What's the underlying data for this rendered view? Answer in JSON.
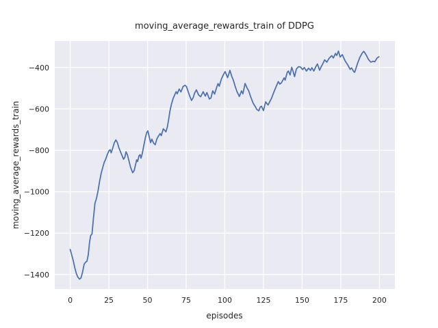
{
  "chart_data": {
    "type": "line",
    "title": "moving_average_rewards_train of DDPG",
    "xlabel": "episodes",
    "ylabel": "moving_average_rewards_train",
    "xlim": [
      -10,
      210
    ],
    "ylim": [
      -1470,
      -272
    ],
    "x_ticks": [
      0,
      25,
      50,
      75,
      100,
      125,
      150,
      175,
      200
    ],
    "y_ticks": [
      -400,
      -600,
      -800,
      -1000,
      -1200,
      -1400
    ],
    "grid": true,
    "legend_position": "none",
    "style": {
      "fig_bg": "#ffffff",
      "plot_bg": "#eaeaf2",
      "grid_color": "#ffffff",
      "line_color": "#4c72b0",
      "text_color": "#262626"
    },
    "series": [
      {
        "name": "moving_average_rewards_train",
        "points": [
          [
            0,
            -1279
          ],
          [
            1,
            -1306
          ],
          [
            2,
            -1334
          ],
          [
            3,
            -1368
          ],
          [
            4,
            -1396
          ],
          [
            5,
            -1413
          ],
          [
            6,
            -1422
          ],
          [
            7,
            -1416
          ],
          [
            8,
            -1388
          ],
          [
            9,
            -1350
          ],
          [
            10,
            -1340
          ],
          [
            10.8,
            -1336
          ],
          [
            11.6,
            -1308
          ],
          [
            12.5,
            -1245
          ],
          [
            13.2,
            -1212
          ],
          [
            14.1,
            -1204
          ],
          [
            15,
            -1130
          ],
          [
            16,
            -1056
          ],
          [
            17,
            -1032
          ],
          [
            18,
            -996
          ],
          [
            19,
            -950
          ],
          [
            20,
            -912
          ],
          [
            21,
            -884
          ],
          [
            22,
            -858
          ],
          [
            23,
            -842
          ],
          [
            24,
            -820
          ],
          [
            25,
            -803
          ],
          [
            25.8,
            -797
          ],
          [
            26.5,
            -812
          ],
          [
            27.5,
            -789
          ],
          [
            28.5,
            -764
          ],
          [
            29.5,
            -750
          ],
          [
            30.5,
            -762
          ],
          [
            31.5,
            -788
          ],
          [
            33,
            -816
          ],
          [
            34.5,
            -843
          ],
          [
            35.3,
            -834
          ],
          [
            36.1,
            -807
          ],
          [
            37,
            -822
          ],
          [
            38,
            -851
          ],
          [
            39,
            -881
          ],
          [
            40.4,
            -908
          ],
          [
            41.4,
            -897
          ],
          [
            42.3,
            -868
          ],
          [
            43,
            -846
          ],
          [
            43.6,
            -854
          ],
          [
            44.5,
            -826
          ],
          [
            45.2,
            -821
          ],
          [
            45.8,
            -838
          ],
          [
            46.6,
            -816
          ],
          [
            47.6,
            -777
          ],
          [
            48.6,
            -739
          ],
          [
            49.5,
            -714
          ],
          [
            50.2,
            -706
          ],
          [
            51,
            -731
          ],
          [
            52,
            -763
          ],
          [
            52.8,
            -746
          ],
          [
            54,
            -766
          ],
          [
            55,
            -773
          ],
          [
            56,
            -746
          ],
          [
            57,
            -732
          ],
          [
            58.2,
            -719
          ],
          [
            58.9,
            -729
          ],
          [
            60.2,
            -696
          ],
          [
            61.1,
            -703
          ],
          [
            61.9,
            -711
          ],
          [
            62.8,
            -688
          ],
          [
            63.6,
            -654
          ],
          [
            64.5,
            -610
          ],
          [
            65.5,
            -577
          ],
          [
            66.6,
            -549
          ],
          [
            67.7,
            -530
          ],
          [
            68.5,
            -517
          ],
          [
            69.2,
            -527
          ],
          [
            70.5,
            -504
          ],
          [
            71.6,
            -518
          ],
          [
            73,
            -492
          ],
          [
            74.2,
            -486
          ],
          [
            75.2,
            -492
          ],
          [
            76.3,
            -517
          ],
          [
            77.3,
            -538
          ],
          [
            78.5,
            -559
          ],
          [
            79.5,
            -546
          ],
          [
            80.5,
            -523
          ],
          [
            81.6,
            -508
          ],
          [
            83,
            -532
          ],
          [
            84.4,
            -541
          ],
          [
            86,
            -517
          ],
          [
            87.4,
            -538
          ],
          [
            88.4,
            -521
          ],
          [
            90,
            -552
          ],
          [
            91,
            -547
          ],
          [
            92.2,
            -513
          ],
          [
            93.4,
            -528
          ],
          [
            94.8,
            -494
          ],
          [
            95.6,
            -478
          ],
          [
            96.4,
            -490
          ],
          [
            97.8,
            -455
          ],
          [
            99,
            -436
          ],
          [
            100.2,
            -420
          ],
          [
            101.8,
            -449
          ],
          [
            103.3,
            -414
          ],
          [
            104.5,
            -443
          ],
          [
            105.5,
            -461
          ],
          [
            106.6,
            -489
          ],
          [
            107.8,
            -515
          ],
          [
            109.4,
            -540
          ],
          [
            110.8,
            -513
          ],
          [
            111.7,
            -527
          ],
          [
            113.1,
            -477
          ],
          [
            114.4,
            -499
          ],
          [
            115.4,
            -512
          ],
          [
            116.8,
            -543
          ],
          [
            118.3,
            -572
          ],
          [
            119.8,
            -590
          ],
          [
            120.6,
            -602
          ],
          [
            122,
            -609
          ],
          [
            122.9,
            -591
          ],
          [
            123.7,
            -587
          ],
          [
            125,
            -608
          ],
          [
            126.4,
            -566
          ],
          [
            127.2,
            -574
          ],
          [
            128,
            -581
          ],
          [
            129.2,
            -563
          ],
          [
            130.2,
            -549
          ],
          [
            131.6,
            -521
          ],
          [
            133.1,
            -494
          ],
          [
            134.6,
            -468
          ],
          [
            135.6,
            -480
          ],
          [
            136.6,
            -474
          ],
          [
            137.8,
            -458
          ],
          [
            138.4,
            -450
          ],
          [
            139,
            -461
          ],
          [
            140.4,
            -423
          ],
          [
            141.1,
            -417
          ],
          [
            142.2,
            -436
          ],
          [
            143.3,
            -399
          ],
          [
            144.2,
            -420
          ],
          [
            145.1,
            -444
          ],
          [
            146.3,
            -407
          ],
          [
            147.7,
            -396
          ],
          [
            149,
            -398
          ],
          [
            150.3,
            -410
          ],
          [
            151.4,
            -400
          ],
          [
            152.8,
            -417
          ],
          [
            154.2,
            -403
          ],
          [
            155.4,
            -414
          ],
          [
            156.3,
            -401
          ],
          [
            157.6,
            -417
          ],
          [
            158.8,
            -397
          ],
          [
            159.9,
            -383
          ],
          [
            161.3,
            -413
          ],
          [
            162.4,
            -395
          ],
          [
            163.3,
            -383
          ],
          [
            164.6,
            -363
          ],
          [
            166,
            -374
          ],
          [
            167.3,
            -357
          ],
          [
            168.3,
            -349
          ],
          [
            169.2,
            -343
          ],
          [
            170.2,
            -354
          ],
          [
            171.6,
            -332
          ],
          [
            172.4,
            -342
          ],
          [
            173.5,
            -321
          ],
          [
            174.6,
            -349
          ],
          [
            176,
            -338
          ],
          [
            177.8,
            -368
          ],
          [
            179.3,
            -385
          ],
          [
            181.1,
            -409
          ],
          [
            182,
            -402
          ],
          [
            183.4,
            -420
          ],
          [
            184,
            -423
          ],
          [
            185.9,
            -379
          ],
          [
            187.4,
            -350
          ],
          [
            188.9,
            -330
          ],
          [
            189.9,
            -322
          ],
          [
            191.4,
            -339
          ],
          [
            192.9,
            -361
          ],
          [
            194.4,
            -374
          ],
          [
            195.8,
            -370
          ],
          [
            197,
            -372
          ],
          [
            198.5,
            -354
          ],
          [
            199.7,
            -348
          ]
        ]
      }
    ]
  }
}
